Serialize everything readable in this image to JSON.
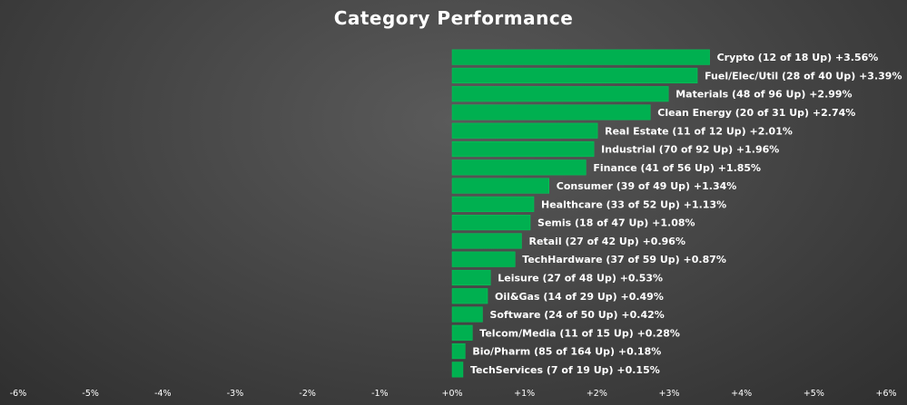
{
  "chart_data": {
    "type": "bar",
    "orientation": "horizontal",
    "title": "Category Performance",
    "xlabel": "",
    "ylabel": "",
    "xlim": [
      -6,
      6
    ],
    "grid": false,
    "bar_color": "#00b050",
    "x_ticks": [
      "-6%",
      "-5%",
      "-4%",
      "-3%",
      "-2%",
      "-1%",
      "+0%",
      "+1%",
      "+2%",
      "+3%",
      "+4%",
      "+5%",
      "+6%"
    ],
    "x_tick_values": [
      -6,
      -5,
      -4,
      -3,
      -2,
      -1,
      0,
      1,
      2,
      3,
      4,
      5,
      6
    ],
    "categories": [
      "Crypto (12 of 18 Up) +3.56%",
      "Fuel/Elec/Util (28 of 40 Up) +3.39%",
      "Materials (48 of 96 Up) +2.99%",
      "Clean Energy (20 of 31 Up) +2.74%",
      "Real Estate (11 of 12 Up) +2.01%",
      "Industrial (70 of 92 Up) +1.96%",
      "Finance (41 of 56 Up) +1.85%",
      "Consumer (39 of 49 Up) +1.34%",
      "Healthcare (33 of 52 Up) +1.13%",
      "Semis (18 of 47 Up) +1.08%",
      "Retail (27 of 42 Up) +0.96%",
      "TechHardware (37 of 59 Up) +0.87%",
      "Leisure (27 of 48 Up) +0.53%",
      "Oil&Gas (14 of 29 Up) +0.49%",
      "Software (24 of 50 Up) +0.42%",
      "Telcom/Media (11 of 15 Up) +0.28%",
      "Bio/Pharm (85 of 164 Up) +0.18%",
      "TechServices (7 of 19 Up) +0.15%"
    ],
    "values": [
      3.56,
      3.39,
      2.99,
      2.74,
      2.01,
      1.96,
      1.85,
      1.34,
      1.13,
      1.08,
      0.96,
      0.87,
      0.53,
      0.49,
      0.42,
      0.28,
      0.18,
      0.15
    ]
  }
}
